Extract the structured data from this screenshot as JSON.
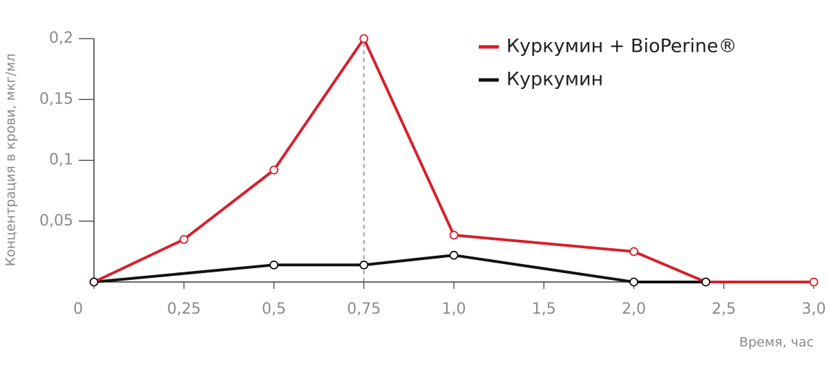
{
  "chart_data": {
    "type": "line",
    "x_label": "Время, час",
    "y_label": "Концентрация в крови, мкг/мл",
    "xlim": [
      0,
      3.0
    ],
    "xticks": [
      0,
      {
        "value": 0.25,
        "label": "0,25"
      },
      {
        "value": 0.5,
        "label": "0,5"
      },
      {
        "value": 0.75,
        "label": "0,75"
      },
      {
        "value": 1.0,
        "label": "1,0"
      },
      {
        "value": 1.5,
        "label": "1,5"
      },
      {
        "value": 2.0,
        "label": "2,0"
      },
      {
        "value": 2.5,
        "label": "2,5"
      },
      {
        "value": 3.0,
        "label": "3,0"
      }
    ],
    "ylim": [
      0,
      0.2
    ],
    "yticks": [
      {
        "value": 0.05,
        "label": "0,05"
      },
      {
        "value": 0.1,
        "label": "0,1"
      },
      {
        "value": 0.15,
        "label": "0,15"
      },
      {
        "value": 0.2,
        "label": "0,2"
      }
    ],
    "series": [
      {
        "name": "Куркумин + BioPerine®",
        "color": "#d71f2c",
        "x": [
          0,
          0.25,
          0.5,
          0.75,
          1.0,
          2.0,
          2.4,
          3.0
        ],
        "values": [
          0,
          0.035,
          0.092,
          0.2,
          0.0385,
          0.025,
          0,
          0
        ]
      },
      {
        "name": "Куркумин",
        "color": "#111111",
        "x": [
          0,
          0.5,
          0.75,
          1.0,
          2.0,
          2.4
        ],
        "values": [
          0,
          0.014,
          0.014,
          0.022,
          0,
          0
        ]
      }
    ]
  }
}
